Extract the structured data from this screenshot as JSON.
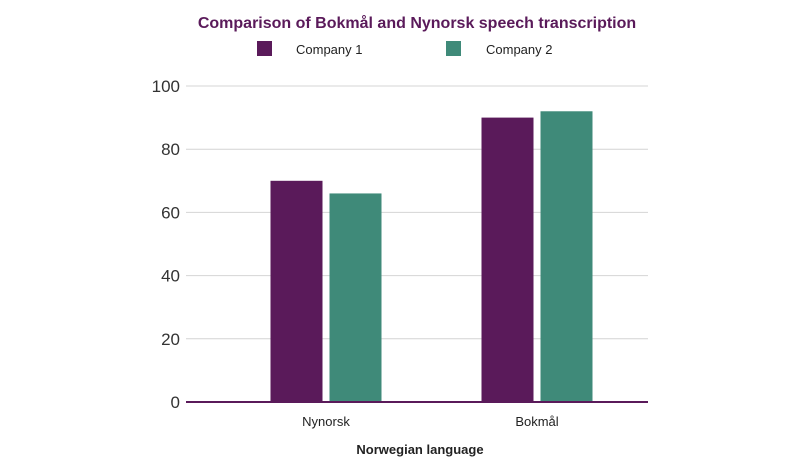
{
  "chart_data": {
    "type": "bar",
    "title": "Comparison of Bokmål and Nynorsk speech transcription",
    "xlabel": "Norwegian language",
    "ylabel": "",
    "categories": [
      "Nynorsk",
      "Bokmål"
    ],
    "series": [
      {
        "name": "Company 1",
        "values": [
          70,
          90
        ],
        "color": "#5a1a5a"
      },
      {
        "name": "Company 2",
        "values": [
          66,
          92
        ],
        "color": "#3f8a79"
      }
    ],
    "ylim": [
      0,
      100
    ],
    "yticks": [
      "0",
      "20",
      "40",
      "60",
      "80",
      "100"
    ],
    "grid": true,
    "legend_position": "top",
    "title_color": "#5a1a5a",
    "axis_color": "#5a1a5a"
  }
}
